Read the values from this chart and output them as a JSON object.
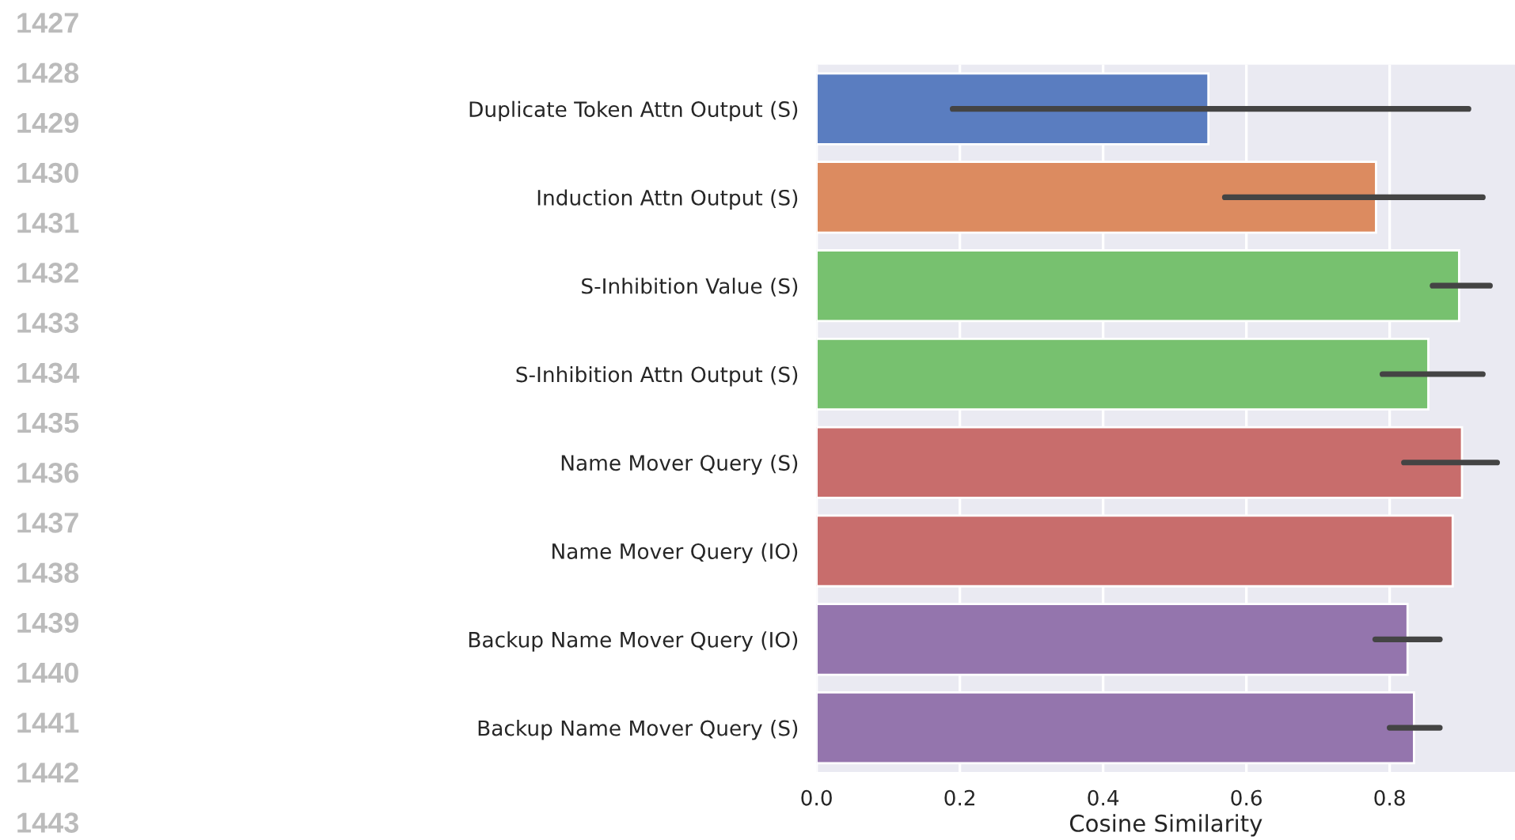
{
  "chart_data": {
    "type": "bar",
    "orientation": "horizontal",
    "xlabel": "Cosine Similarity",
    "categories": [
      "Duplicate Token Attn Output (S)",
      "Induction Attn Output (S)",
      "S-Inhibition Value (S)",
      "S-Inhibition Attn Output (S)",
      "Name Mover Query (S)",
      "Name Mover Query (IO)",
      "Backup Name Mover Query (IO)",
      "Backup Name Mover Query (S)"
    ],
    "values": [
      0.547,
      0.781,
      0.897,
      0.854,
      0.901,
      0.888,
      0.825,
      0.834
    ],
    "errors": [
      [
        0.19,
        0.91
      ],
      [
        0.57,
        0.93
      ],
      [
        0.86,
        0.94
      ],
      [
        0.79,
        0.93
      ],
      [
        0.82,
        0.95
      ],
      null,
      [
        0.78,
        0.87
      ],
      [
        0.8,
        0.87
      ]
    ],
    "colors": [
      "#5a7dc0",
      "#dc8b60",
      "#77c16f",
      "#77c16f",
      "#c86d6c",
      "#c86d6c",
      "#9475ad",
      "#9475ad"
    ],
    "xlim": [
      0,
      0.975
    ],
    "xticks": [
      {
        "value": 0,
        "label": "0.0"
      },
      0.2,
      0.4,
      0.6,
      0.8
    ],
    "grid": "x",
    "annotations": [
      "1427",
      "1428",
      "1429",
      "1430",
      "1431",
      "1432",
      "1433",
      "1434",
      "1435",
      "1436",
      "1437",
      "1438",
      "1439",
      "1440",
      "1441",
      "1442",
      "1443"
    ]
  }
}
